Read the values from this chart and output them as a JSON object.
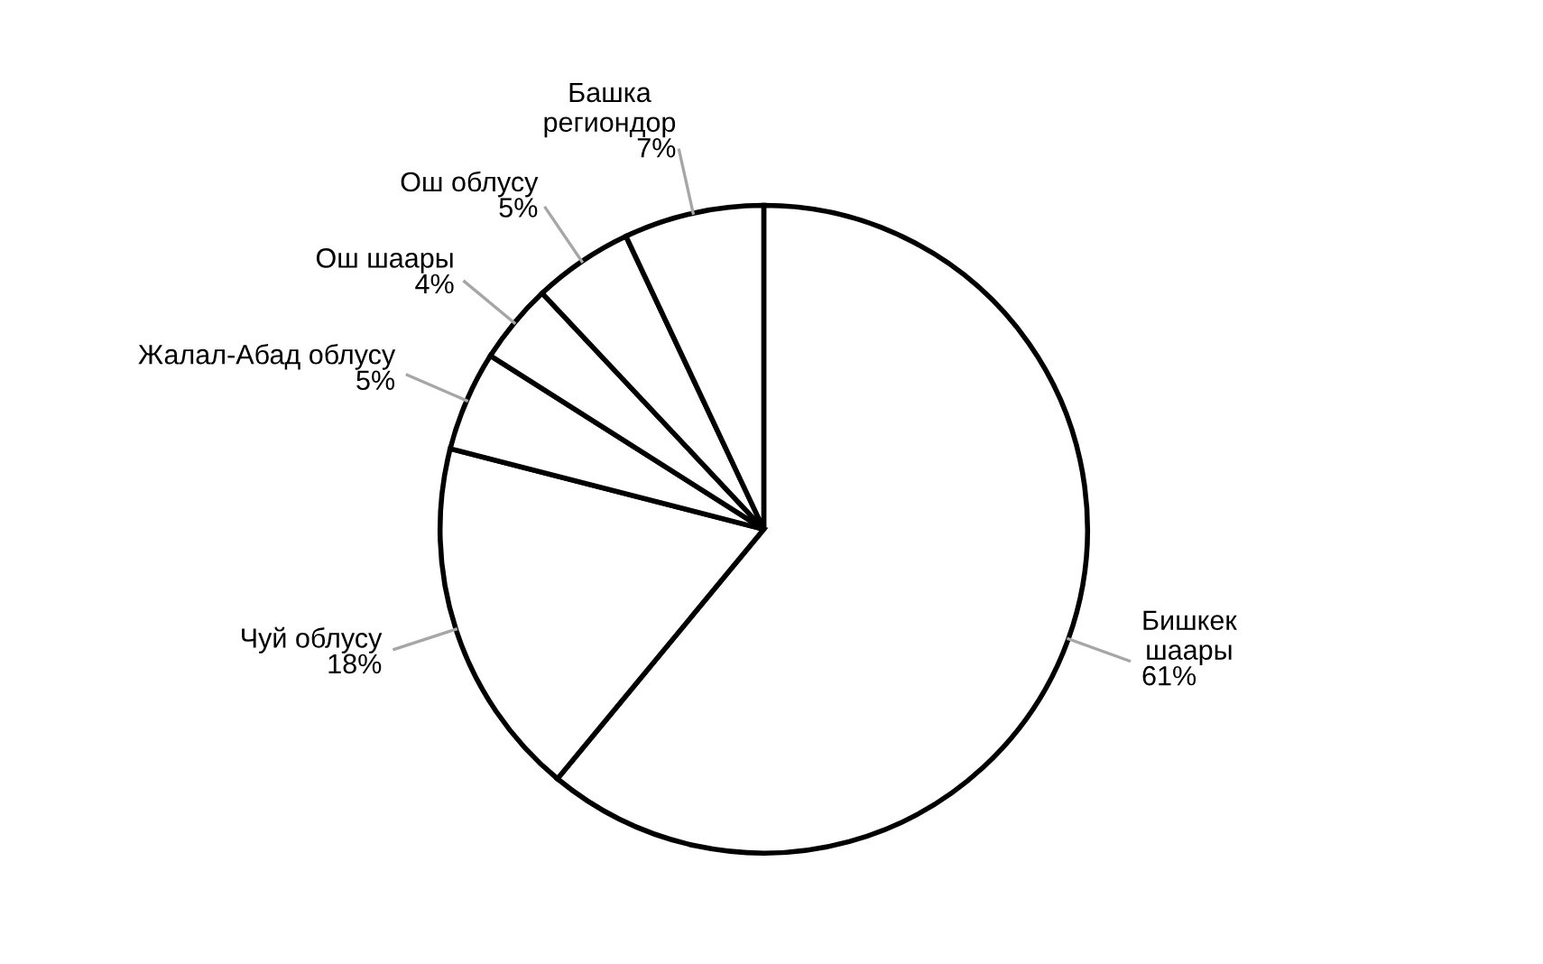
{
  "chart_data": {
    "type": "pie",
    "categories": [
      "Бишкек\nшаары",
      "Чуй облусу",
      "Жалал-Абад облусу",
      "Ош шаары",
      "Ош облусу",
      "Башка\nрегиондор"
    ],
    "values": [
      61,
      18,
      5,
      4,
      5,
      7
    ],
    "colors": [
      "#ffffff",
      "#ffffff",
      "#ffffff",
      "#ffffff",
      "#ffffff",
      "#ffffff"
    ],
    "value_labels": [
      "61%",
      "18%",
      "5%",
      "4%",
      "5%",
      "7%"
    ],
    "legend": false
  }
}
